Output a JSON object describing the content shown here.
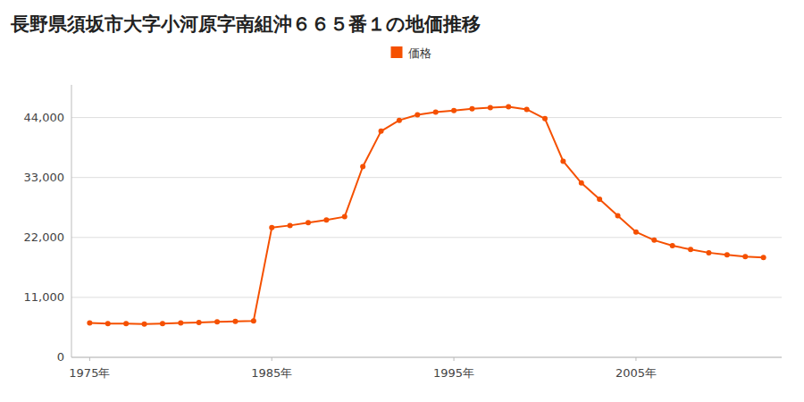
{
  "chart_data": {
    "type": "line",
    "title": "長野県須坂市大字小河原字南組沖６６５番１の地価推移",
    "x": [
      1975,
      1976,
      1977,
      1978,
      1979,
      1980,
      1981,
      1982,
      1983,
      1984,
      1985,
      1986,
      1987,
      1988,
      1989,
      1990,
      1991,
      1992,
      1993,
      1994,
      1995,
      1996,
      1997,
      1998,
      1999,
      2000,
      2001,
      2002,
      2003,
      2004,
      2005,
      2006,
      2007,
      2008,
      2009,
      2010,
      2011,
      2012
    ],
    "series": [
      {
        "name": "価格",
        "color": "#f55000",
        "marker": "circle",
        "values": [
          6300,
          6200,
          6200,
          6100,
          6200,
          6300,
          6400,
          6500,
          6600,
          6700,
          23800,
          24200,
          24700,
          25200,
          25800,
          35000,
          41500,
          43500,
          44500,
          45000,
          45300,
          45600,
          45800,
          46000,
          45500,
          43800,
          36000,
          32000,
          29000,
          26000,
          23000,
          21500,
          20500,
          19800,
          19200,
          18800,
          18500,
          18300
        ]
      }
    ],
    "xlim": [
      1974,
      2013
    ],
    "xticks": [
      {
        "value": 1975,
        "label": "1975年"
      },
      {
        "value": 1985,
        "label": "1985年"
      },
      {
        "value": 1995,
        "label": "1995年"
      },
      {
        "value": 2005,
        "label": "2005年"
      }
    ],
    "ylim": [
      0,
      50000
    ],
    "yticks": [
      0,
      {
        "value": 11000,
        "label": "11,000"
      },
      {
        "value": 22000,
        "label": "22,000"
      },
      {
        "value": 33000,
        "label": "33,000"
      },
      {
        "value": 44000,
        "label": "44,000"
      }
    ],
    "grid": "y",
    "legend": "top"
  }
}
